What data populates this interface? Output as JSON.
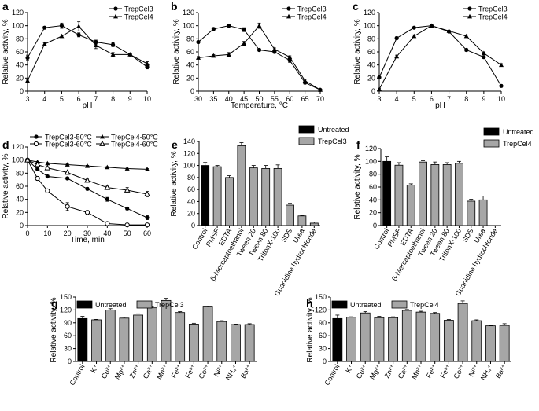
{
  "chart_data": [
    {
      "panel": "a",
      "type": "line",
      "xlabel": "pH",
      "ylabel": "Relative activity, %",
      "xlim": [
        3,
        10
      ],
      "ylim": [
        0,
        120
      ],
      "xticks": [
        3,
        4,
        5,
        6,
        7,
        8,
        9,
        10
      ],
      "yticks": [
        0,
        20,
        40,
        60,
        80,
        100,
        120
      ],
      "legend": {
        "position": "top-right"
      },
      "series": [
        {
          "name": "TrepCel3",
          "marker": "circle",
          "x": [
            3,
            4,
            5,
            6,
            7,
            8,
            9,
            10
          ],
          "y": [
            51,
            97,
            100,
            86,
            75,
            71,
            56,
            37
          ],
          "err": [
            4,
            2,
            4,
            3,
            3,
            3,
            2,
            3
          ]
        },
        {
          "name": "TrepCel4",
          "marker": "triangle",
          "x": [
            3,
            4,
            5,
            6,
            7,
            8,
            9,
            10
          ],
          "y": [
            16,
            72,
            84,
            99,
            70,
            56,
            56,
            42
          ],
          "err": [
            2,
            2,
            2,
            7,
            5,
            3,
            2,
            3
          ]
        }
      ]
    },
    {
      "panel": "b",
      "type": "line",
      "xlabel": "Temperature, °C",
      "ylabel": "Relative activity, %",
      "xlim": [
        30,
        70
      ],
      "ylim": [
        0,
        120
      ],
      "xticks": [
        30,
        35,
        40,
        45,
        50,
        55,
        60,
        65,
        70
      ],
      "yticks": [
        0,
        20,
        40,
        60,
        80,
        100,
        120
      ],
      "legend": {
        "position": "top-right"
      },
      "series": [
        {
          "name": "TrepCel3",
          "marker": "circle",
          "x": [
            30,
            35,
            40,
            45,
            50,
            55,
            60,
            65,
            70
          ],
          "y": [
            75,
            95,
            100,
            94,
            63,
            60,
            47,
            13,
            2
          ],
          "err": [
            2,
            2,
            2,
            3,
            2,
            2,
            3,
            2,
            1
          ]
        },
        {
          "name": "TrepCel4",
          "marker": "triangle",
          "x": [
            30,
            35,
            40,
            45,
            50,
            55,
            60,
            65,
            70
          ],
          "y": [
            51,
            54,
            56,
            73,
            100,
            64,
            52,
            16,
            2
          ],
          "err": [
            2,
            2,
            3,
            3,
            4,
            2,
            2,
            2,
            1
          ]
        }
      ]
    },
    {
      "panel": "c",
      "type": "line",
      "xlabel": "pH",
      "ylabel": "Relative activity, %",
      "xlim": [
        3,
        10
      ],
      "ylim": [
        0,
        120
      ],
      "xticks": [
        3,
        4,
        5,
        6,
        7,
        8,
        9,
        10
      ],
      "yticks": [
        0,
        20,
        40,
        60,
        80,
        100,
        120
      ],
      "legend": {
        "position": "top-right"
      },
      "series": [
        {
          "name": "TrepCel3",
          "marker": "circle",
          "x": [
            3,
            4,
            5,
            6,
            7,
            8,
            9,
            10
          ],
          "y": [
            21,
            81,
            97,
            100,
            91,
            63,
            52,
            8
          ],
          "err": [
            1,
            2,
            1,
            1,
            1,
            2,
            2,
            2
          ]
        },
        {
          "name": "TrepCel4",
          "marker": "triangle",
          "x": [
            3,
            4,
            5,
            6,
            7,
            8,
            9,
            10
          ],
          "y": [
            3,
            53,
            84,
            100,
            92,
            84,
            58,
            40
          ],
          "err": [
            1,
            2,
            2,
            1,
            1,
            2,
            2,
            2
          ]
        }
      ]
    },
    {
      "panel": "d",
      "type": "line",
      "xlabel": "Time, min",
      "ylabel": "Relative activity, %",
      "xlim": [
        0,
        60
      ],
      "ylim": [
        0,
        120
      ],
      "xticks": [
        0,
        10,
        20,
        30,
        40,
        50,
        60
      ],
      "yticks": [
        0,
        20,
        40,
        60,
        80,
        100,
        120
      ],
      "legend": {
        "position": "top"
      },
      "series": [
        {
          "name": "TrepCel3-50°C",
          "marker": "circle",
          "x": [
            0,
            5,
            10,
            20,
            30,
            40,
            50,
            60
          ],
          "y": [
            100,
            86,
            75,
            72,
            56,
            40,
            26,
            12
          ],
          "err": [
            1,
            2,
            2,
            2,
            2,
            3,
            2,
            3
          ]
        },
        {
          "name": "TrepCel3-60°C",
          "marker": "open-circle",
          "x": [
            0,
            5,
            10,
            20,
            30,
            40,
            50,
            60
          ],
          "y": [
            100,
            72,
            53,
            29,
            20,
            3,
            1,
            1
          ],
          "err": [
            1,
            3,
            2,
            6,
            3,
            1,
            1,
            1
          ]
        },
        {
          "name": "TrepCel4-50°C",
          "marker": "triangle",
          "x": [
            0,
            5,
            10,
            20,
            30,
            40,
            50,
            60
          ],
          "y": [
            100,
            97,
            95,
            93,
            91,
            89,
            87,
            86
          ],
          "err": [
            1,
            1,
            1,
            1,
            1,
            1,
            2,
            1
          ]
        },
        {
          "name": "TrepCel4-60°C",
          "marker": "open-triangle",
          "x": [
            0,
            5,
            10,
            20,
            30,
            40,
            50,
            60
          ],
          "y": [
            100,
            93,
            88,
            81,
            69,
            58,
            54,
            48
          ],
          "err": [
            1,
            2,
            1,
            2,
            2,
            2,
            4,
            4
          ]
        }
      ]
    },
    {
      "panel": "e",
      "type": "bar",
      "ylabel": "Relative activity, %",
      "ylim": [
        0,
        140
      ],
      "yticks": [
        0,
        20,
        40,
        60,
        80,
        100,
        120,
        140
      ],
      "legend": {
        "position": "top-left",
        "entries": [
          "Untreated",
          "TrepCel3"
        ]
      },
      "categories": [
        "Control",
        "PMSF",
        "EDTA",
        "β-Mercaptoethanol",
        "Tween 20",
        "Tween 80",
        "TritonX-100",
        "SDS",
        "Urea",
        "Guanidine hydrochloride"
      ],
      "values": [
        100,
        98,
        80,
        133,
        96,
        95,
        95,
        34,
        16,
        4
      ],
      "err": [
        5,
        2,
        3,
        5,
        4,
        5,
        6,
        3,
        1,
        2
      ]
    },
    {
      "panel": "f",
      "type": "bar",
      "ylabel": "Relative activity, %",
      "ylim": [
        0,
        120
      ],
      "yticks": [
        0,
        20,
        40,
        60,
        80,
        100,
        120
      ],
      "legend": {
        "position": "top-right",
        "entries": [
          "Untreated",
          "TrepCel4"
        ]
      },
      "categories": [
        "Control",
        "PMSF",
        "EDTA",
        "β-Mercaptoethanol",
        "Tween 20",
        "Tween 80",
        "TritonX-100",
        "SDS",
        "Urea",
        "Guanidine hydrochloride"
      ],
      "values": [
        100,
        94,
        63,
        99,
        95,
        95,
        97,
        38,
        40,
        0
      ],
      "err": [
        7,
        4,
        2,
        2,
        4,
        3,
        3,
        3,
        6,
        0
      ]
    },
    {
      "panel": "g",
      "type": "bar",
      "ylabel": "Relative activity, %",
      "ylim": [
        0,
        150
      ],
      "yticks": [
        0,
        30,
        60,
        90,
        120,
        150
      ],
      "legend": {
        "position": "top-left",
        "entries": [
          "Untreated",
          "TrepCel3"
        ]
      },
      "categories": [
        "Control",
        "K⁺",
        "Cu²⁺",
        "Mg²⁺",
        "Zn²⁺",
        "Ca²⁺",
        "Mn²⁺",
        "Fe²⁺",
        "Fe³⁺",
        "Co²⁺",
        "Ni²⁺",
        "NH₄⁺",
        "Ba²⁺"
      ],
      "values": [
        100,
        97,
        120,
        101,
        108,
        125,
        142,
        114,
        87,
        127,
        93,
        86,
        86
      ],
      "err": [
        5,
        1,
        3,
        2,
        3,
        3,
        5,
        2,
        2,
        2,
        2,
        1,
        2
      ]
    },
    {
      "panel": "h",
      "type": "bar",
      "ylabel": "Relative activity, %",
      "ylim": [
        0,
        150
      ],
      "yticks": [
        0,
        30,
        60,
        90,
        120,
        150
      ],
      "legend": {
        "position": "top-left",
        "entries": [
          "Untreated",
          "TrepCel4"
        ]
      },
      "categories": [
        "Control",
        "K⁺",
        "Cu²⁺",
        "Mg²⁺",
        "Zn²⁺",
        "Ca²⁺",
        "Mn²⁺",
        "Fe²⁺",
        "Fe³⁺",
        "Co²⁺",
        "Ni²⁺",
        "NH₄⁺",
        "Ba²⁺"
      ],
      "values": [
        100,
        103,
        113,
        102,
        102,
        119,
        115,
        112,
        96,
        135,
        95,
        83,
        84
      ],
      "err": [
        8,
        1,
        3,
        3,
        2,
        2,
        2,
        2,
        2,
        6,
        2,
        1,
        4
      ]
    }
  ]
}
